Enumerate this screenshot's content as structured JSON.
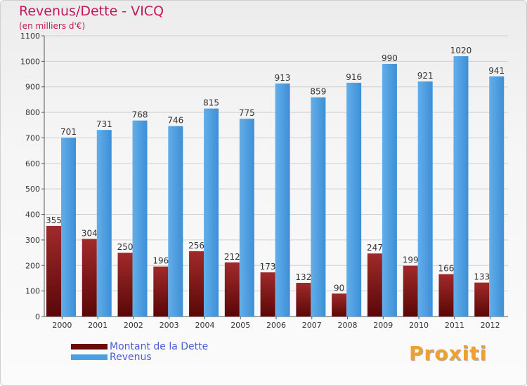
{
  "header": {
    "title": "Revenus/Dette - VICQ",
    "subtitle": "(en milliers d'€)"
  },
  "legend": {
    "items": [
      {
        "label": "Montant de la Dette",
        "color": "#6b0b0b"
      },
      {
        "label": "Revenus",
        "color": "#4f9fe0"
      }
    ]
  },
  "branding": {
    "logo_text": "Proxiti"
  },
  "colors": {
    "dette_dark": "#5a0707",
    "dette_light": "#a12a2a",
    "revenus_dark": "#3d8fd6",
    "revenus_light": "#62aeea",
    "title": "#c2185b",
    "legend_text": "#4a5bd6",
    "grid": "#d0d0d0"
  },
  "chart_data": {
    "type": "bar",
    "title": "Revenus/Dette - VICQ",
    "subtitle": "(en milliers d'€)",
    "categories": [
      "2000",
      "2001",
      "2002",
      "2003",
      "2004",
      "2005",
      "2006",
      "2007",
      "2008",
      "2009",
      "2010",
      "2011",
      "2012"
    ],
    "series": [
      {
        "name": "Montant de la Dette",
        "values": [
          355,
          304,
          250,
          196,
          256,
          212,
          173,
          132,
          90,
          247,
          199,
          166,
          133
        ]
      },
      {
        "name": "Revenus",
        "values": [
          701,
          731,
          768,
          746,
          815,
          775,
          913,
          859,
          916,
          990,
          921,
          1020,
          941
        ]
      }
    ],
    "ylim": [
      0,
      1100
    ],
    "yticks": [
      0,
      100,
      200,
      300,
      400,
      500,
      600,
      700,
      800,
      900,
      1000,
      1100
    ],
    "grid": true,
    "legend_position": "bottom-left"
  }
}
